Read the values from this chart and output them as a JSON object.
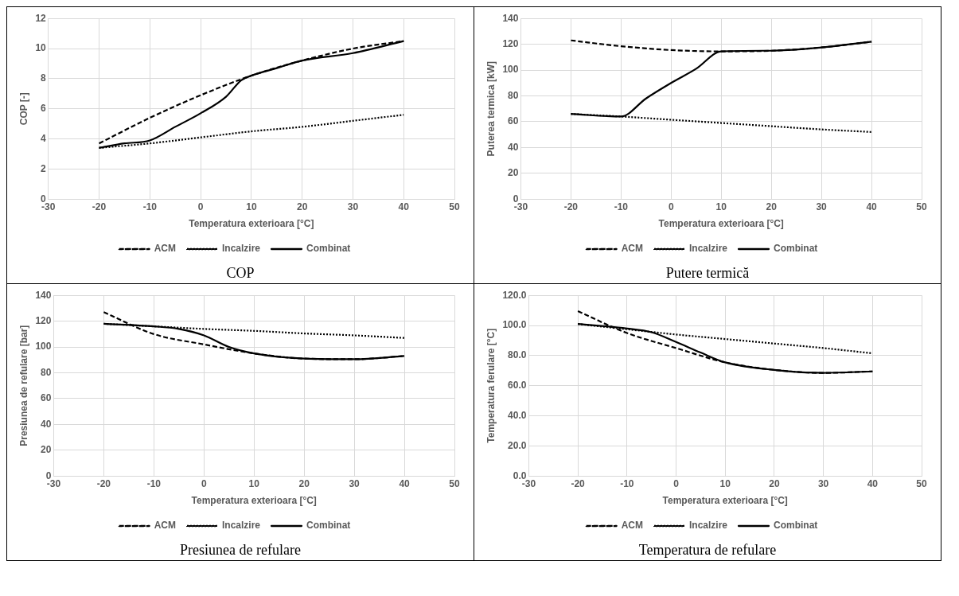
{
  "chart_data": [
    {
      "type": "line",
      "ylabel": "COP [-]",
      "xlabel": "Temperatura exterioara [°C]",
      "xlim": [
        -30,
        50
      ],
      "xticks": [
        -30,
        -20,
        -10,
        0,
        10,
        20,
        30,
        40,
        50
      ],
      "ylim": [
        0,
        12
      ],
      "yticks": [
        0,
        2,
        4,
        6,
        8,
        10,
        12
      ],
      "grid": true,
      "legend": "bottom",
      "annotations": [
        "COP"
      ],
      "series": [
        {
          "name": "ACM",
          "color": "#000000",
          "line_style": "dashed",
          "x": [
            -20,
            -10,
            0,
            10,
            20,
            30,
            40
          ],
          "values": [
            3.7,
            5.4,
            6.9,
            8.2,
            9.2,
            10.0,
            10.5
          ]
        },
        {
          "name": "Incalzire",
          "color": "#000000",
          "line_style": "dotted",
          "x": [
            -20,
            -10,
            0,
            10,
            20,
            30,
            40
          ],
          "values": [
            3.4,
            3.7,
            4.1,
            4.5,
            4.8,
            5.2,
            5.6
          ]
        },
        {
          "name": "Combinat",
          "color": "#000000",
          "line_style": "solid",
          "x": [
            -20,
            -15,
            -10,
            -5,
            0,
            5,
            8,
            10,
            15,
            20,
            30,
            40
          ],
          "values": [
            3.4,
            3.7,
            3.9,
            4.8,
            5.7,
            6.8,
            7.9,
            8.2,
            8.7,
            9.2,
            9.7,
            10.5
          ]
        }
      ]
    },
    {
      "type": "line",
      "ylabel": "Puterea termica [kW]",
      "xlabel": "Temperatura exterioara [°C]",
      "xlim": [
        -30,
        50
      ],
      "xticks": [
        -30,
        -20,
        -10,
        0,
        10,
        20,
        30,
        40,
        50
      ],
      "ylim": [
        0,
        140
      ],
      "yticks": [
        0,
        20,
        40,
        60,
        80,
        100,
        120,
        140
      ],
      "grid": true,
      "legend": "bottom",
      "annotations": [
        "Putere termică"
      ],
      "series": [
        {
          "name": "ACM",
          "color": "#000000",
          "line_style": "dashed",
          "x": [
            -20,
            -10,
            0,
            10,
            20,
            30,
            40
          ],
          "values": [
            123,
            118.5,
            115.5,
            114.5,
            115,
            117.5,
            122
          ]
        },
        {
          "name": "Incalzire",
          "color": "#000000",
          "line_style": "dotted",
          "x": [
            -20,
            -10,
            0,
            10,
            20,
            30,
            40
          ],
          "values": [
            66,
            64,
            61.5,
            59,
            56.5,
            54,
            52
          ]
        },
        {
          "name": "Combinat",
          "color": "#000000",
          "line_style": "solid",
          "x": [
            -20,
            -10,
            -5,
            0,
            5,
            10,
            20,
            30,
            40
          ],
          "values": [
            66,
            64,
            78,
            90,
            101,
            114.5,
            115,
            117.5,
            122
          ]
        }
      ]
    },
    {
      "type": "line",
      "ylabel": "Presiunea de refulare [bar]",
      "xlabel": "Temperatura exterioara [°C]",
      "xlim": [
        -30,
        50
      ],
      "xticks": [
        -30,
        -20,
        -10,
        0,
        10,
        20,
        30,
        40,
        50
      ],
      "ylim": [
        0,
        140
      ],
      "yticks": [
        0,
        20,
        40,
        60,
        80,
        100,
        120,
        140
      ],
      "grid": true,
      "legend": "bottom",
      "annotations": [
        "Presiunea de refulare"
      ],
      "series": [
        {
          "name": "ACM",
          "color": "#000000",
          "line_style": "dashed",
          "x": [
            -20,
            -10,
            0,
            10,
            20,
            30,
            40
          ],
          "values": [
            127,
            110,
            102,
            95,
            91,
            90.5,
            93
          ]
        },
        {
          "name": "Incalzire",
          "color": "#000000",
          "line_style": "dotted",
          "x": [
            -20,
            -10,
            0,
            10,
            20,
            30,
            40
          ],
          "values": [
            118,
            116,
            114,
            112.5,
            110.5,
            109,
            107
          ]
        },
        {
          "name": "Combinat",
          "color": "#000000",
          "line_style": "solid",
          "x": [
            -20,
            -10,
            -5,
            0,
            5,
            10,
            20,
            30,
            40
          ],
          "values": [
            118,
            116,
            114,
            109,
            100,
            95,
            91,
            90.5,
            93
          ]
        }
      ]
    },
    {
      "type": "line",
      "ylabel": "Temperatura ferulare [°C]",
      "xlabel": "Temperatura exterioara [°C]",
      "xlim": [
        -30,
        50
      ],
      "xticks": [
        -30,
        -20,
        -10,
        0,
        10,
        20,
        30,
        40,
        50
      ],
      "ylim": [
        0,
        120
      ],
      "yticks": [
        {
          "value": 0,
          "label": "0.0"
        },
        {
          "value": 20,
          "label": "20.0"
        },
        {
          "value": 40,
          "label": "40.0"
        },
        {
          "value": 60,
          "label": "60.0"
        },
        {
          "value": 80,
          "label": "80.0"
        },
        {
          "value": 100,
          "label": "100.0"
        },
        {
          "value": 120,
          "label": "120.0"
        }
      ],
      "grid": true,
      "legend": "bottom",
      "annotations": [
        "Temperatura de refulare"
      ],
      "series": [
        {
          "name": "ACM",
          "color": "#000000",
          "line_style": "dashed",
          "x": [
            -20,
            -10,
            0,
            10,
            20,
            30,
            40
          ],
          "values": [
            109.5,
            95,
            85,
            75.5,
            70.5,
            68.5,
            69.5
          ]
        },
        {
          "name": "Incalzire",
          "color": "#000000",
          "line_style": "dotted",
          "x": [
            -20,
            -10,
            0,
            10,
            20,
            30,
            40
          ],
          "values": [
            101,
            97.5,
            94,
            91,
            88,
            85,
            81.5
          ]
        },
        {
          "name": "Combinat",
          "color": "#000000",
          "line_style": "solid",
          "x": [
            -20,
            -10,
            -5,
            0,
            5,
            10,
            20,
            30,
            40
          ],
          "values": [
            101,
            98,
            95.5,
            89,
            82,
            75.5,
            70.5,
            68.5,
            69.5
          ]
        }
      ]
    }
  ]
}
